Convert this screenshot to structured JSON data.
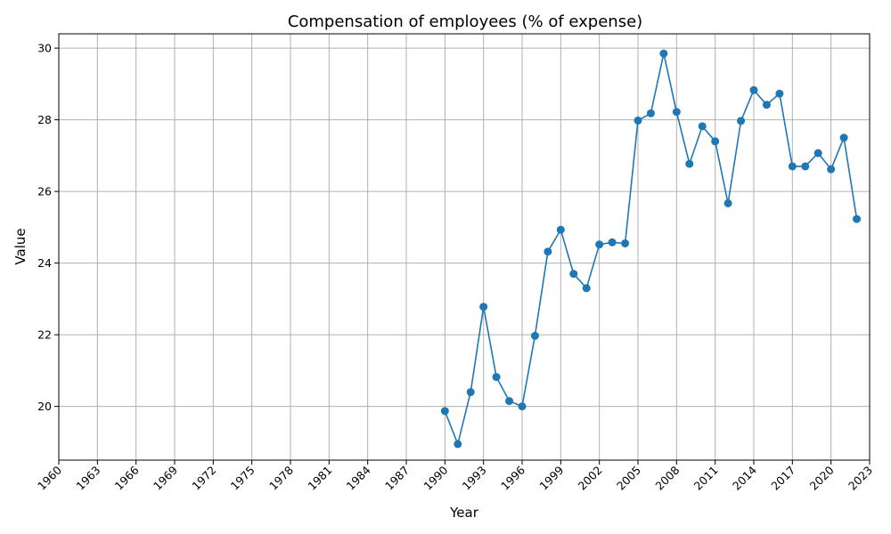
{
  "chart_data": {
    "type": "line",
    "title": "Compensation of employees (% of expense)",
    "xlabel": "Year",
    "ylabel": "Value",
    "xlim": [
      1960,
      2023
    ],
    "ylim": [
      18.5,
      30.4
    ],
    "grid": true,
    "x_ticks": [
      "1960",
      "1963",
      "1966",
      "1969",
      "1972",
      "1975",
      "1978",
      "1981",
      "1984",
      "1987",
      "1990",
      "1993",
      "1996",
      "1999",
      "2002",
      "2005",
      "2008",
      "2011",
      "2014",
      "2017",
      "2020",
      "2023"
    ],
    "y_ticks": [
      "20",
      "22",
      "24",
      "26",
      "28",
      "30"
    ],
    "series": [
      {
        "color": "#1f77b4",
        "x": [
          1990,
          1991,
          1992,
          1993,
          1994,
          1995,
          1996,
          1997,
          1998,
          1999,
          2000,
          2001,
          2002,
          2003,
          2004,
          2005,
          2006,
          2007,
          2008,
          2009,
          2010,
          2011,
          2012,
          2013,
          2014,
          2015,
          2016,
          2017,
          2018,
          2019,
          2020,
          2021,
          2022
        ],
        "values": [
          19.87,
          18.95,
          20.4,
          22.78,
          20.82,
          20.15,
          20.0,
          21.97,
          24.32,
          24.93,
          23.7,
          23.3,
          24.52,
          24.58,
          24.55,
          27.98,
          28.18,
          29.85,
          28.22,
          26.77,
          27.82,
          27.4,
          25.67,
          27.97,
          28.83,
          28.42,
          28.73,
          26.7,
          26.7,
          27.07,
          26.62,
          27.5,
          25.23
        ]
      }
    ]
  }
}
